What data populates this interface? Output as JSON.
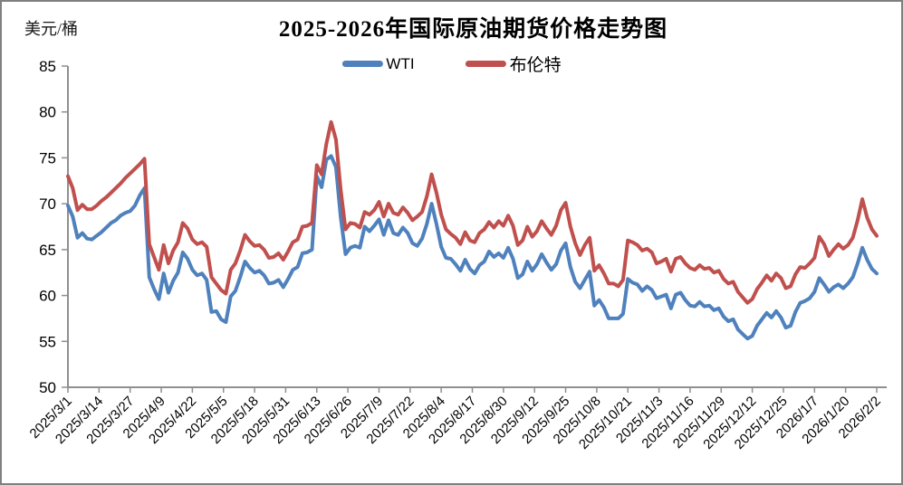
{
  "frame": {
    "border_color": "#808080",
    "background": "#ffffff"
  },
  "header": {
    "title": "2025-2026年国际原油期货价格走势图",
    "unit_label": "美元/桶"
  },
  "chart_data": {
    "type": "line",
    "title": "2025-2026年国际原油期货价格走势图",
    "xlabel": "",
    "ylabel": "美元/桶",
    "ylim": [
      50,
      85
    ],
    "ytick_interval": 5,
    "y_ticks": [
      85,
      80,
      75,
      70,
      65,
      60,
      55,
      50
    ],
    "grid": false,
    "legend_position": "top-center",
    "axis_color": "#8f8f8f",
    "text_color": "#000000",
    "x_tick_labels": [
      "2025/3/1",
      "2025/3/14",
      "2025/3/27",
      "2025/4/9",
      "2025/4/22",
      "2025/5/5",
      "2025/5/18",
      "2025/5/31",
      "2025/6/13",
      "2025/6/26",
      "2025/7/9",
      "2025/7/22",
      "2025/8/4",
      "2025/8/17",
      "2025/8/30",
      "2025/9/12",
      "2025/9/25",
      "2025/10/8",
      "2025/10/21",
      "2025/11/3",
      "2025/11/16",
      "2025/11/29",
      "2025/12/12",
      "2025/12/25",
      "2026/1/7",
      "2026/1/20",
      "2026/2/2"
    ],
    "sampling_note": "values sampled approximately every 2 days from 2025/3/1 to 2026/2/2",
    "series": [
      {
        "name": "WTI",
        "color": "#4F81BD",
        "values": [
          69.8,
          68.6,
          66.3,
          66.8,
          66.2,
          66.1,
          66.5,
          66.9,
          67.4,
          67.9,
          68.2,
          68.7,
          69.0,
          69.2,
          69.8,
          70.9,
          71.7,
          62.0,
          60.7,
          59.6,
          62.4,
          60.3,
          61.6,
          62.5,
          64.7,
          64.0,
          62.8,
          62.2,
          62.4,
          61.7,
          58.2,
          58.3,
          57.4,
          57.1,
          59.9,
          60.5,
          62.0,
          63.7,
          63.0,
          62.5,
          62.7,
          62.2,
          61.3,
          61.4,
          61.7,
          60.9,
          61.8,
          62.8,
          63.1,
          64.6,
          64.7,
          65.0,
          73.0,
          71.8,
          74.8,
          75.2,
          74.0,
          68.5,
          64.5,
          65.2,
          65.4,
          65.2,
          67.5,
          67.0,
          67.6,
          68.3,
          66.6,
          68.2,
          66.8,
          66.6,
          67.4,
          66.8,
          65.7,
          65.4,
          66.2,
          67.8,
          70.0,
          67.8,
          65.3,
          64.1,
          64.0,
          63.4,
          62.7,
          63.9,
          62.9,
          62.4,
          63.3,
          63.7,
          64.8,
          64.2,
          64.6,
          64.1,
          65.2,
          64.0,
          61.9,
          62.3,
          63.7,
          62.7,
          63.4,
          64.5,
          63.6,
          62.8,
          63.4,
          64.9,
          65.7,
          63.1,
          61.5,
          60.8,
          61.7,
          62.6,
          58.9,
          59.5,
          58.7,
          57.5,
          57.5,
          57.5,
          58.0,
          61.8,
          61.4,
          61.2,
          60.5,
          61.0,
          60.6,
          59.7,
          59.9,
          60.1,
          58.6,
          60.1,
          60.3,
          59.5,
          58.9,
          58.8,
          59.3,
          58.8,
          58.9,
          58.4,
          58.6,
          57.7,
          57.2,
          57.4,
          56.3,
          55.8,
          55.3,
          55.6,
          56.7,
          57.4,
          58.1,
          57.6,
          58.3,
          57.6,
          56.5,
          56.7,
          58.2,
          59.2,
          59.4,
          59.7,
          60.4,
          61.9,
          61.2,
          60.4,
          60.9,
          61.2,
          60.8,
          61.3,
          62.0,
          63.5,
          65.2,
          63.9,
          62.9,
          62.4
        ]
      },
      {
        "name": "布伦特",
        "color": "#C0504D",
        "values": [
          73.0,
          71.7,
          69.3,
          69.9,
          69.4,
          69.4,
          69.8,
          70.3,
          70.7,
          71.2,
          71.7,
          72.2,
          72.8,
          73.3,
          73.8,
          74.3,
          74.9,
          65.6,
          64.2,
          62.8,
          65.5,
          63.5,
          64.9,
          65.8,
          67.9,
          67.3,
          66.1,
          65.6,
          65.8,
          65.3,
          62.0,
          61.3,
          60.6,
          60.2,
          62.8,
          63.5,
          64.9,
          66.6,
          65.9,
          65.4,
          65.5,
          65.0,
          64.1,
          64.2,
          64.6,
          63.9,
          64.8,
          65.8,
          66.1,
          67.5,
          67.6,
          67.9,
          74.2,
          73.2,
          76.5,
          78.9,
          77.0,
          71.5,
          67.2,
          67.9,
          67.8,
          67.4,
          69.1,
          68.8,
          69.3,
          70.2,
          68.6,
          70.0,
          69.0,
          68.8,
          69.6,
          69.0,
          68.2,
          68.6,
          69.1,
          70.8,
          73.2,
          71.2,
          68.8,
          67.2,
          66.7,
          66.3,
          65.6,
          66.9,
          66.0,
          65.8,
          66.8,
          67.2,
          68.0,
          67.4,
          68.1,
          67.6,
          68.7,
          67.6,
          65.5,
          66.0,
          67.5,
          66.4,
          67.0,
          68.1,
          67.3,
          66.6,
          67.6,
          69.3,
          70.1,
          67.5,
          65.7,
          64.4,
          65.5,
          66.3,
          62.7,
          63.3,
          62.4,
          61.3,
          61.3,
          61.0,
          61.7,
          66.0,
          65.8,
          65.5,
          64.9,
          65.1,
          64.7,
          63.5,
          63.7,
          64.0,
          62.6,
          64.0,
          64.2,
          63.5,
          63.0,
          62.8,
          63.3,
          62.9,
          63.0,
          62.5,
          62.7,
          61.8,
          61.3,
          61.5,
          60.4,
          59.8,
          59.2,
          59.6,
          60.7,
          61.4,
          62.2,
          61.6,
          62.4,
          61.9,
          60.8,
          61.0,
          62.3,
          63.1,
          63.0,
          63.5,
          64.1,
          66.4,
          65.6,
          64.3,
          65.0,
          65.6,
          65.1,
          65.5,
          66.3,
          68.2,
          70.5,
          68.5,
          67.2,
          66.5
        ]
      }
    ]
  }
}
